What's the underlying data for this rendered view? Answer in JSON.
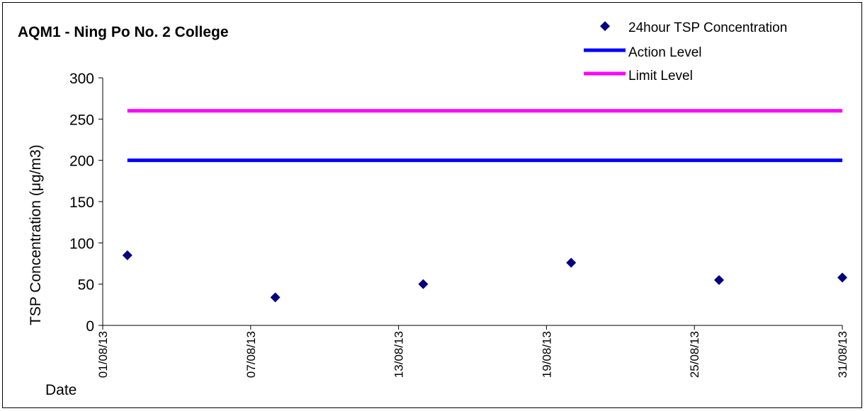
{
  "chart_data": {
    "type": "scatter",
    "title": "AQM1 - Ning Po No. 2 College",
    "ylabel": "TSP Concentration (μg/m3)",
    "xlabel": "Date",
    "ylim": [
      0,
      300
    ],
    "yticks": [
      0,
      50,
      100,
      150,
      200,
      250,
      300
    ],
    "xlim": [
      "01/08/13",
      "31/08/13"
    ],
    "xticks": [
      "01/08/13",
      "07/08/13",
      "13/08/13",
      "19/08/13",
      "25/08/13",
      "31/08/13"
    ],
    "grid": false,
    "legend_position": "top-right",
    "series": [
      {
        "name": "24hour TSP Concentration",
        "kind": "scatter",
        "marker": "diamond",
        "color": "#000080",
        "points": [
          {
            "x": "02/08/13",
            "y": 85
          },
          {
            "x": "08/08/13",
            "y": 34
          },
          {
            "x": "14/08/13",
            "y": 50
          },
          {
            "x": "20/08/13",
            "y": 76
          },
          {
            "x": "26/08/13",
            "y": 55
          },
          {
            "x": "31/08/13",
            "y": 58
          }
        ]
      },
      {
        "name": "Action Level",
        "kind": "line",
        "color": "#0000FF",
        "points": [
          {
            "x": "02/08/13",
            "y": 200
          },
          {
            "x": "31/08/13",
            "y": 200
          }
        ]
      },
      {
        "name": "Limit Level",
        "kind": "line",
        "color": "#FF00FF",
        "points": [
          {
            "x": "02/08/13",
            "y": 260
          },
          {
            "x": "31/08/13",
            "y": 260
          }
        ]
      }
    ]
  }
}
